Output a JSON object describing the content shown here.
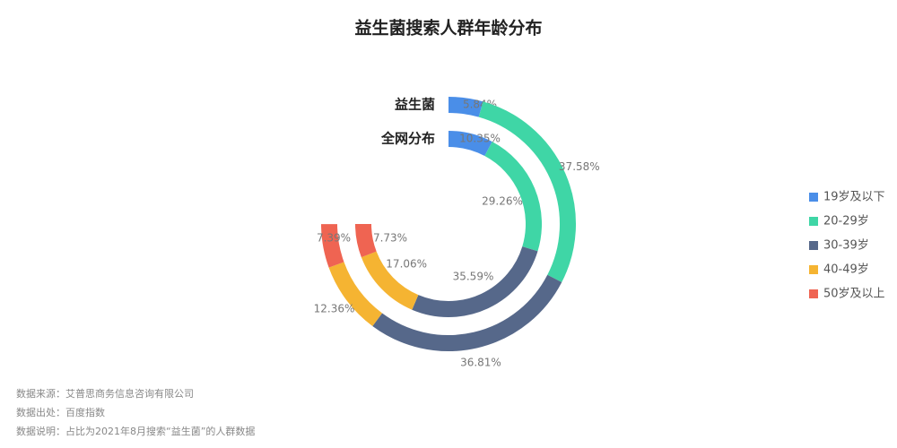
{
  "chart_data": {
    "type": "ring",
    "title": "益生菌搜索人群年龄分布",
    "categories": [
      "19岁及以下",
      "20-29岁",
      "30-39岁",
      "40-49岁",
      "50岁及以上"
    ],
    "colors": [
      "#4a8ee8",
      "#3fd6a6",
      "#56688a",
      "#f5b432",
      "#ef6452"
    ],
    "ylim": [
      0,
      100
    ],
    "series": [
      {
        "name": "益生菌",
        "values": [
          5.84,
          37.58,
          36.81,
          12.36,
          7.39
        ],
        "value_labels": [
          "5.84%",
          "37.58%",
          "36.81%",
          "12.36%",
          "7.39%"
        ]
      },
      {
        "name": "全网分布",
        "values": [
          10.35,
          29.26,
          35.59,
          17.06,
          7.73
        ],
        "value_labels": [
          "10.35%",
          "29.26%",
          "35.59%",
          "17.06%",
          "7.73%"
        ]
      }
    ],
    "notes": [
      "数据来源：艾普思商务信息咨询有限公司",
      "数据出处：百度指数",
      "数据说明：占比为2021年8月搜索“益生菌”的人群数据"
    ]
  }
}
